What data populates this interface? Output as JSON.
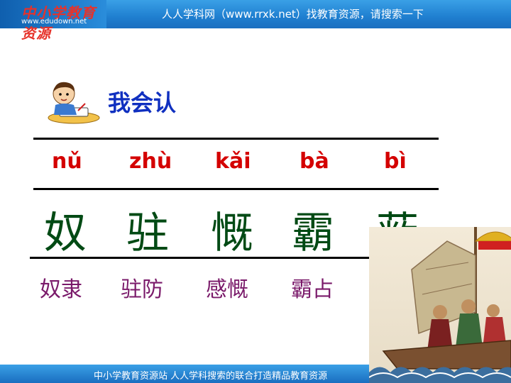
{
  "header": {
    "logo_text": "中小学教育资源",
    "logo_url": "www.edudown.net",
    "banner_text": "人人学科网（www.rrxk.net）找教育资源，请搜索一下"
  },
  "section": {
    "title": "我会认"
  },
  "pinyin": [
    "nǔ",
    "zhù",
    "kǎi",
    "bà",
    "bì"
  ],
  "characters": [
    "奴",
    "驻",
    "慨",
    "霸",
    "蔽"
  ],
  "words": [
    "奴隶",
    "驻防",
    "感慨",
    "霸占"
  ],
  "footer": {
    "text": "中小学教育资源站 人人学科搜索的联合打造精品教育资源"
  },
  "colors": {
    "banner": "#1f7fd0",
    "title": "#1030c0",
    "pinyin": "#d40000",
    "character": "#004a14",
    "word": "#7a1a6a"
  },
  "icons": {
    "kid": "kid-writing-icon",
    "ship": "warship-illustration"
  }
}
